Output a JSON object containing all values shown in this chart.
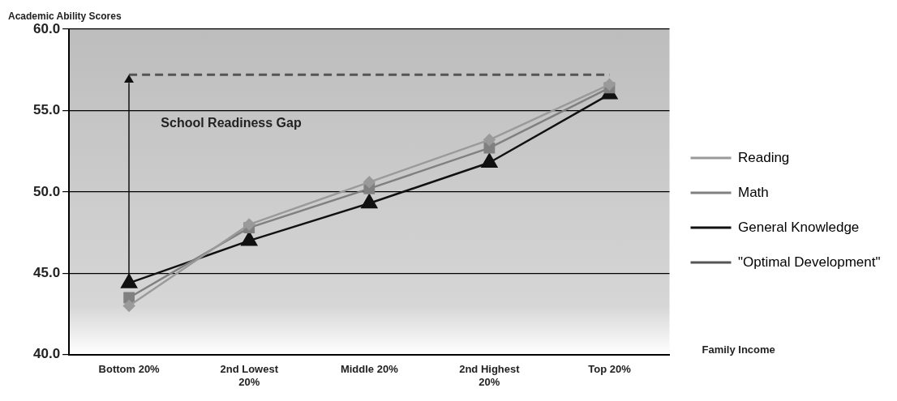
{
  "chart_data": {
    "type": "line",
    "ylabel": "Academic Ability Scores",
    "xlabel": "Family Income",
    "categories": [
      "Bottom 20%",
      "2nd Lowest 20%",
      "Middle 20%",
      "2nd Highest 20%",
      "Top 20%"
    ],
    "series": [
      {
        "name": "Reading",
        "color": "#9a9a9a",
        "marker": "diamond",
        "values": [
          43.0,
          48.0,
          50.6,
          53.2,
          56.6
        ]
      },
      {
        "name": "Math",
        "color": "#808080",
        "marker": "square",
        "values": [
          43.5,
          47.8,
          50.2,
          52.7,
          56.4
        ]
      },
      {
        "name": "General Knowledge",
        "color": "#111111",
        "marker": "triangle",
        "values": [
          44.4,
          47.0,
          49.3,
          51.8,
          56.0
        ]
      },
      {
        "name": "\"Optimal Development\"",
        "color": "#555555",
        "marker": "none",
        "line_style": "dashed",
        "values": [
          57.2,
          57.2,
          57.2,
          57.2,
          57.2
        ]
      }
    ],
    "ylim": [
      40,
      60
    ],
    "yticks": [
      {
        "value": 40,
        "label": "40.0"
      },
      {
        "value": 45,
        "label": "45.0"
      },
      {
        "value": 50,
        "label": "50.0"
      },
      {
        "value": 55,
        "label": "55.0"
      },
      {
        "value": 60,
        "label": "60.0"
      }
    ],
    "grid": "y",
    "legend": "right",
    "annotations": [
      "School Readiness Gap"
    ]
  }
}
